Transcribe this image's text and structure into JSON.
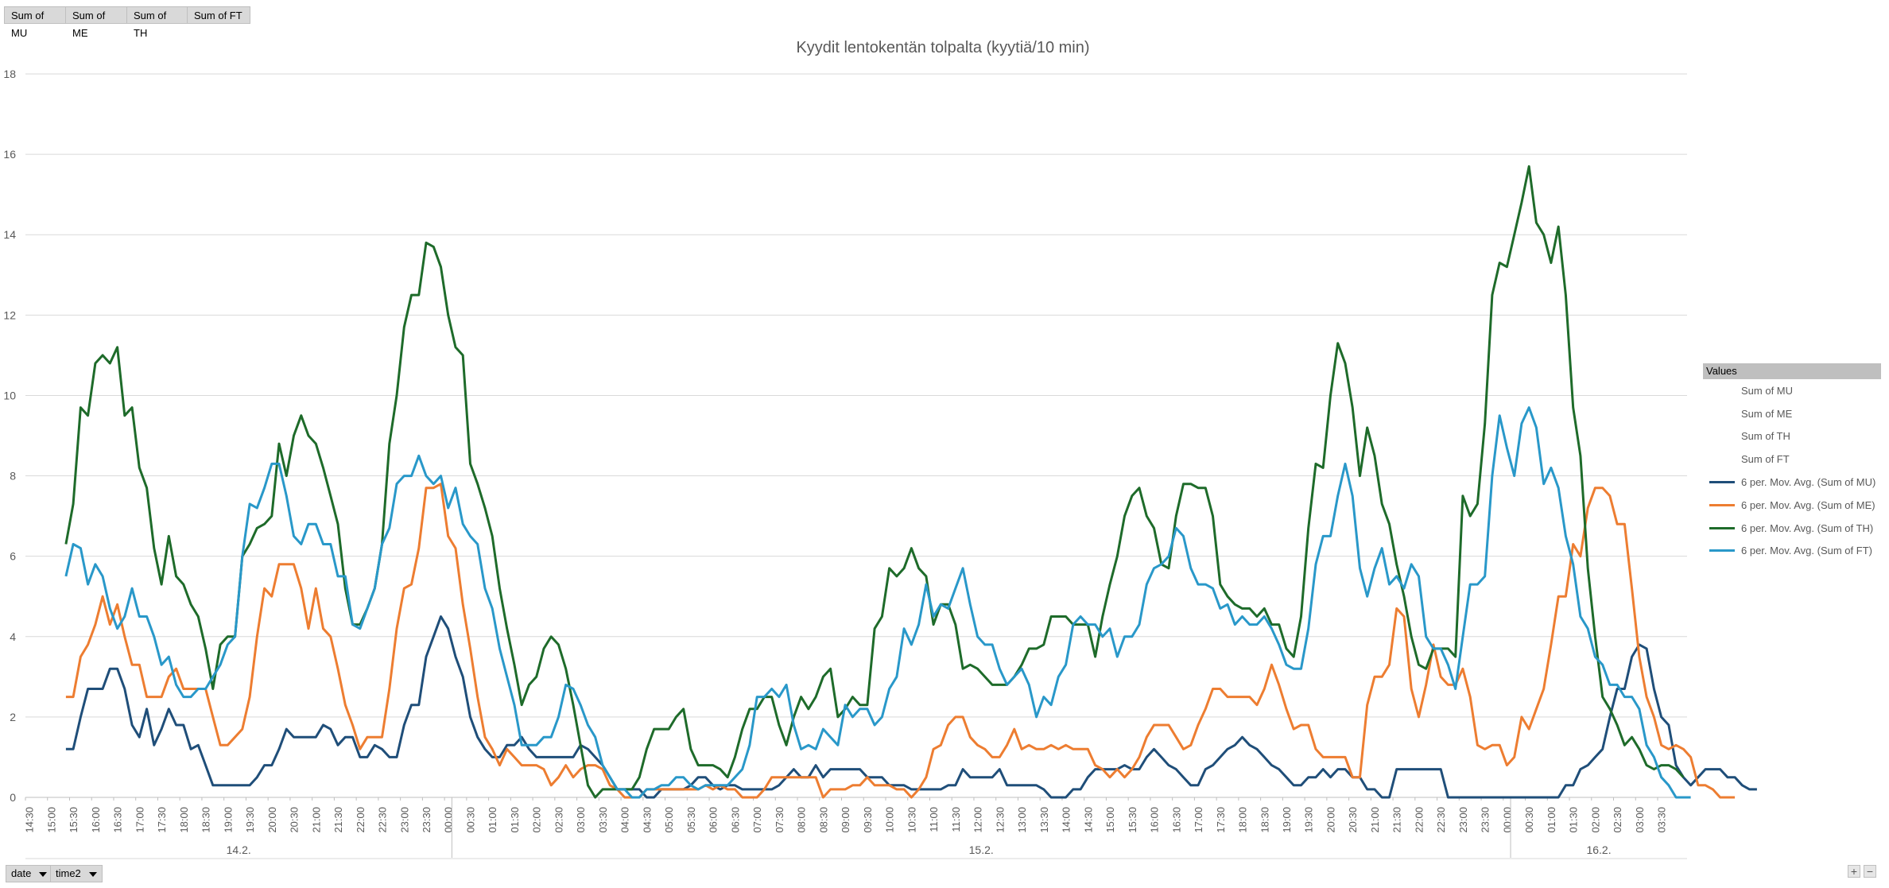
{
  "toolbar": {
    "fields": [
      "Sum of MU",
      "Sum of ME",
      "Sum of TH",
      "Sum of FT"
    ],
    "row_fields": [
      "date",
      "time2"
    ],
    "zoom_in": "+",
    "zoom_out": "−"
  },
  "chart_data": {
    "type": "line",
    "title": "Kyydit lentokentän tolpalta (kyytiä/10 min)",
    "xlabel": "",
    "ylabel": "",
    "ylim": [
      0,
      18
    ],
    "yticks": [
      0,
      2,
      4,
      6,
      8,
      10,
      12,
      14,
      16,
      18
    ],
    "grid": true,
    "legend_position": "right",
    "legend_title": "Values",
    "x_start": "14.2. 14:30",
    "interval_minutes": 10,
    "tick_labels": [
      "14:30",
      "15:00",
      "15:30",
      "16:00",
      "16:30",
      "17:00",
      "17:30",
      "18:00",
      "18:30",
      "19:00",
      "19:30",
      "20:00",
      "20:30",
      "21:00",
      "21:30",
      "22:00",
      "22:30",
      "23:00",
      "23:30",
      "00:00",
      "00:30",
      "01:00",
      "01:30",
      "02:00",
      "02:30",
      "03:00",
      "03:30",
      "04:00",
      "04:30",
      "05:00",
      "05:30",
      "06:00",
      "06:30",
      "07:00",
      "07:30",
      "08:00",
      "08:30",
      "09:00",
      "09:30",
      "10:00",
      "10:30",
      "11:00",
      "11:30",
      "12:00",
      "12:30",
      "13:00",
      "13:30",
      "14:00",
      "14:30",
      "15:00",
      "15:30",
      "16:00",
      "16:30",
      "17:00",
      "17:30",
      "18:00",
      "18:30",
      "19:00",
      "19:30",
      "20:00",
      "20:30",
      "21:00",
      "21:30",
      "22:00",
      "22:30",
      "23:00",
      "23:30",
      "00:00",
      "00:30",
      "01:00",
      "01:30",
      "02:00",
      "02:30",
      "03:00",
      "03:30"
    ],
    "date_groups": [
      {
        "label": "14.2.",
        "start_index": 0,
        "end_index": 58
      },
      {
        "label": "15.2.",
        "start_index": 58,
        "end_index": 202
      },
      {
        "label": "16.2.",
        "start_index": 202,
        "end_index": 226
      }
    ],
    "series": [
      {
        "name": "Sum of MU",
        "color": "#ffffff",
        "values": []
      },
      {
        "name": "Sum of ME",
        "color": "#ffffff",
        "values": []
      },
      {
        "name": "Sum of TH",
        "color": "#ffffff",
        "values": []
      },
      {
        "name": "Sum of FT",
        "color": "#ffffff",
        "values": []
      },
      {
        "name": "6 per. Mov. Avg. (Sum of MU)",
        "color": "#1f4e79",
        "values": [
          null,
          null,
          null,
          null,
          null,
          1.2,
          1.2,
          2.0,
          2.7,
          2.7,
          2.7,
          3.2,
          3.2,
          2.7,
          1.8,
          1.5,
          2.2,
          1.3,
          1.7,
          2.2,
          1.8,
          1.8,
          1.2,
          1.3,
          0.8,
          0.3,
          0.3,
          0.3,
          0.3,
          0.3,
          0.3,
          0.5,
          0.8,
          0.8,
          1.2,
          1.7,
          1.5,
          1.5,
          1.5,
          1.5,
          1.8,
          1.7,
          1.3,
          1.5,
          1.5,
          1.0,
          1.0,
          1.3,
          1.2,
          1.0,
          1.0,
          1.8,
          2.3,
          2.3,
          3.5,
          4.0,
          4.5,
          4.2,
          3.5,
          3.0,
          2.0,
          1.5,
          1.2,
          1.0,
          1.0,
          1.3,
          1.3,
          1.5,
          1.2,
          1.0,
          1.0,
          1.0,
          1.0,
          1.0,
          1.0,
          1.3,
          1.2,
          1.0,
          0.8,
          0.5,
          0.2,
          0.2,
          0.2,
          0.2,
          0.0,
          0.0,
          0.2,
          0.2,
          0.2,
          0.2,
          0.3,
          0.5,
          0.5,
          0.3,
          0.2,
          0.3,
          0.3,
          0.2,
          0.2,
          0.2,
          0.2,
          0.2,
          0.3,
          0.5,
          0.7,
          0.5,
          0.5,
          0.8,
          0.5,
          0.7,
          0.7,
          0.7,
          0.7,
          0.7,
          0.5,
          0.5,
          0.5,
          0.3,
          0.3,
          0.3,
          0.2,
          0.2,
          0.2,
          0.2,
          0.2,
          0.3,
          0.3,
          0.7,
          0.5,
          0.5,
          0.5,
          0.5,
          0.7,
          0.3,
          0.3,
          0.3,
          0.3,
          0.3,
          0.2,
          0.0,
          0.0,
          0.0,
          0.2,
          0.2,
          0.5,
          0.7,
          0.7,
          0.7,
          0.7,
          0.8,
          0.7,
          0.7,
          1.0,
          1.2,
          1.0,
          0.8,
          0.7,
          0.5,
          0.3,
          0.3,
          0.7,
          0.8,
          1.0,
          1.2,
          1.3,
          1.5,
          1.3,
          1.2,
          1.0,
          0.8,
          0.7,
          0.5,
          0.3,
          0.3,
          0.5,
          0.5,
          0.7,
          0.5,
          0.7,
          0.7,
          0.5,
          0.5,
          0.2,
          0.2,
          0.0,
          0.0,
          0.7,
          0.7,
          0.7,
          0.7,
          0.7,
          0.7,
          0.7,
          0.0,
          0.0,
          0.0,
          0.0,
          0.0,
          0.0,
          0.0,
          0.0,
          0.0,
          0.0,
          0.0,
          0.0,
          0.0,
          0.0,
          0.0,
          0.0,
          0.3,
          0.3,
          0.7,
          0.8,
          1.0,
          1.2,
          2.0,
          2.7,
          2.7,
          3.5,
          3.8,
          3.7,
          2.7,
          2.0,
          1.8,
          0.8,
          0.5,
          0.3,
          0.5,
          0.7,
          0.7,
          0.7,
          0.5,
          0.5,
          0.3,
          0.2,
          0.2
        ]
      },
      {
        "name": "6 per. Mov. Avg. (Sum of ME)",
        "color": "#ed7d31",
        "values": [
          null,
          null,
          null,
          null,
          null,
          2.5,
          2.5,
          3.5,
          3.8,
          4.3,
          5.0,
          4.3,
          4.8,
          4.0,
          3.3,
          3.3,
          2.5,
          2.5,
          2.5,
          3.0,
          3.2,
          2.7,
          2.7,
          2.7,
          2.7,
          2.0,
          1.3,
          1.3,
          1.5,
          1.7,
          2.5,
          4.0,
          5.2,
          5.0,
          5.8,
          5.8,
          5.8,
          5.2,
          4.2,
          5.2,
          4.2,
          4.0,
          3.2,
          2.3,
          1.8,
          1.2,
          1.5,
          1.5,
          1.5,
          2.7,
          4.2,
          5.2,
          5.3,
          6.2,
          7.7,
          7.7,
          7.8,
          6.5,
          6.2,
          4.8,
          3.7,
          2.5,
          1.5,
          1.2,
          0.8,
          1.2,
          1.0,
          0.8,
          0.8,
          0.8,
          0.7,
          0.3,
          0.5,
          0.8,
          0.5,
          0.7,
          0.8,
          0.8,
          0.7,
          0.3,
          0.2,
          0.0,
          0.0,
          0.0,
          0.2,
          0.2,
          0.2,
          0.2,
          0.2,
          0.2,
          0.2,
          0.2,
          0.3,
          0.2,
          0.3,
          0.2,
          0.2,
          0.0,
          0.0,
          0.0,
          0.2,
          0.5,
          0.5,
          0.5,
          0.5,
          0.5,
          0.5,
          0.5,
          0.0,
          0.2,
          0.2,
          0.2,
          0.3,
          0.3,
          0.5,
          0.3,
          0.3,
          0.3,
          0.2,
          0.2,
          0.0,
          0.2,
          0.5,
          1.2,
          1.3,
          1.8,
          2.0,
          2.0,
          1.5,
          1.3,
          1.2,
          1.0,
          1.0,
          1.3,
          1.7,
          1.2,
          1.3,
          1.2,
          1.2,
          1.3,
          1.2,
          1.3,
          1.2,
          1.2,
          1.2,
          0.8,
          0.7,
          0.5,
          0.7,
          0.5,
          0.7,
          1.0,
          1.5,
          1.8,
          1.8,
          1.8,
          1.5,
          1.2,
          1.3,
          1.8,
          2.2,
          2.7,
          2.7,
          2.5,
          2.5,
          2.5,
          2.5,
          2.3,
          2.7,
          3.3,
          2.8,
          2.2,
          1.7,
          1.8,
          1.8,
          1.2,
          1.0,
          1.0,
          1.0,
          1.0,
          0.5,
          0.5,
          2.3,
          3.0,
          3.0,
          3.3,
          4.7,
          4.5,
          2.7,
          2.0,
          2.8,
          3.8,
          3.0,
          2.8,
          2.8,
          3.2,
          2.5,
          1.3,
          1.2,
          1.3,
          1.3,
          0.8,
          1.0,
          2.0,
          1.7,
          2.2,
          2.7,
          3.8,
          5.0,
          5.0,
          6.3,
          6.0,
          7.2,
          7.7,
          7.7,
          7.5,
          6.8,
          6.8,
          5.2,
          3.5,
          2.5,
          2.0,
          1.3,
          1.2,
          1.3,
          1.2,
          1.0,
          0.3,
          0.3,
          0.2,
          0.0,
          0.0,
          0.0
        ]
      },
      {
        "name": "6 per. Mov. Avg. (Sum of TH)",
        "color": "#1e6b2a",
        "values": [
          null,
          null,
          null,
          null,
          null,
          6.3,
          7.3,
          9.7,
          9.5,
          10.8,
          11.0,
          10.8,
          11.2,
          9.5,
          9.7,
          8.2,
          7.7,
          6.2,
          5.3,
          6.5,
          5.5,
          5.3,
          4.8,
          4.5,
          3.7,
          2.7,
          3.8,
          4.0,
          4.0,
          6.0,
          6.3,
          6.7,
          6.8,
          7.0,
          8.8,
          8.0,
          9.0,
          9.5,
          9.0,
          8.8,
          8.2,
          7.5,
          6.8,
          5.2,
          4.3,
          4.3,
          4.7,
          5.2,
          6.3,
          8.8,
          10.0,
          11.7,
          12.5,
          12.5,
          13.8,
          13.7,
          13.2,
          12.0,
          11.2,
          11.0,
          8.3,
          7.8,
          7.2,
          6.5,
          5.2,
          4.2,
          3.3,
          2.3,
          2.8,
          3.0,
          3.7,
          4.0,
          3.8,
          3.2,
          2.3,
          1.3,
          0.3,
          0.0,
          0.2,
          0.2,
          0.2,
          0.2,
          0.2,
          0.5,
          1.2,
          1.7,
          1.7,
          1.7,
          2.0,
          2.2,
          1.2,
          0.8,
          0.8,
          0.8,
          0.7,
          0.5,
          1.0,
          1.7,
          2.2,
          2.2,
          2.5,
          2.5,
          1.8,
          1.3,
          2.0,
          2.5,
          2.2,
          2.5,
          3.0,
          3.2,
          2.0,
          2.2,
          2.5,
          2.3,
          2.3,
          4.2,
          4.5,
          5.7,
          5.5,
          5.7,
          6.2,
          5.7,
          5.5,
          4.3,
          4.8,
          4.8,
          4.3,
          3.2,
          3.3,
          3.2,
          3.0,
          2.8,
          2.8,
          2.8,
          3.0,
          3.3,
          3.7,
          3.7,
          3.8,
          4.5,
          4.5,
          4.5,
          4.3,
          4.3,
          4.3,
          3.5,
          4.5,
          5.3,
          6.0,
          7.0,
          7.5,
          7.7,
          7.0,
          6.7,
          5.8,
          5.7,
          7.0,
          7.8,
          7.8,
          7.7,
          7.7,
          7.0,
          5.3,
          5.0,
          4.8,
          4.7,
          4.7,
          4.5,
          4.7,
          4.3,
          4.3,
          3.7,
          3.5,
          4.5,
          6.7,
          8.3,
          8.2,
          10.0,
          11.3,
          10.8,
          9.7,
          8.0,
          9.2,
          8.5,
          7.3,
          6.8,
          5.8,
          5.0,
          4.0,
          3.3,
          3.2,
          3.7,
          3.7,
          3.7,
          3.5,
          7.5,
          7.0,
          7.3,
          9.3,
          12.5,
          13.3,
          13.2,
          14.0,
          14.8,
          15.7,
          14.3,
          14.0,
          13.3,
          14.2,
          12.5,
          9.7,
          8.5,
          5.7,
          4.0,
          2.5,
          2.2,
          1.8,
          1.3,
          1.5,
          1.2,
          0.8,
          0.7,
          0.8,
          0.8,
          0.7,
          0.5
        ]
      },
      {
        "name": "6 per. Mov. Avg. (Sum of FT)",
        "color": "#2998c9",
        "values": [
          null,
          null,
          null,
          null,
          null,
          5.5,
          6.3,
          6.2,
          5.3,
          5.8,
          5.5,
          4.7,
          4.2,
          4.5,
          5.2,
          4.5,
          4.5,
          4.0,
          3.3,
          3.5,
          2.8,
          2.5,
          2.5,
          2.7,
          2.7,
          3.0,
          3.3,
          3.8,
          4.0,
          6.0,
          7.3,
          7.2,
          7.7,
          8.3,
          8.3,
          7.5,
          6.5,
          6.3,
          6.8,
          6.8,
          6.3,
          6.3,
          5.5,
          5.5,
          4.3,
          4.2,
          4.7,
          5.2,
          6.3,
          6.7,
          7.8,
          8.0,
          8.0,
          8.5,
          8.0,
          7.8,
          8.0,
          7.2,
          7.7,
          6.8,
          6.5,
          6.3,
          5.2,
          4.7,
          3.7,
          3.0,
          2.3,
          1.3,
          1.3,
          1.3,
          1.5,
          1.5,
          2.0,
          2.8,
          2.7,
          2.3,
          1.8,
          1.5,
          0.8,
          0.5,
          0.2,
          0.2,
          0.0,
          0.0,
          0.2,
          0.2,
          0.3,
          0.3,
          0.5,
          0.5,
          0.3,
          0.2,
          0.3,
          0.3,
          0.3,
          0.3,
          0.5,
          0.7,
          1.3,
          2.5,
          2.5,
          2.7,
          2.5,
          2.8,
          1.8,
          1.2,
          1.3,
          1.2,
          1.7,
          1.5,
          1.3,
          2.3,
          2.0,
          2.2,
          2.2,
          1.8,
          2.0,
          2.7,
          3.0,
          4.2,
          3.8,
          4.3,
          5.3,
          4.5,
          4.8,
          4.7,
          5.2,
          5.7,
          4.8,
          4.0,
          3.8,
          3.8,
          3.2,
          2.8,
          3.0,
          3.2,
          2.8,
          2.0,
          2.5,
          2.3,
          3.0,
          3.3,
          4.3,
          4.5,
          4.3,
          4.3,
          4.0,
          4.2,
          3.5,
          4.0,
          4.0,
          4.3,
          5.3,
          5.7,
          5.8,
          6.0,
          6.7,
          6.5,
          5.7,
          5.3,
          5.3,
          5.2,
          4.7,
          4.8,
          4.3,
          4.5,
          4.3,
          4.3,
          4.5,
          4.2,
          3.8,
          3.3,
          3.2,
          3.2,
          4.2,
          5.8,
          6.5,
          6.5,
          7.5,
          8.3,
          7.5,
          5.7,
          5.0,
          5.7,
          6.2,
          5.3,
          5.5,
          5.2,
          5.8,
          5.5,
          4.0,
          3.7,
          3.7,
          3.3,
          2.7,
          4.0,
          5.3,
          5.3,
          5.5,
          8.0,
          9.5,
          8.7,
          8.0,
          9.3,
          9.7,
          9.2,
          7.8,
          8.2,
          7.7,
          6.5,
          5.8,
          4.5,
          4.2,
          3.5,
          3.3,
          2.8,
          2.8,
          2.5,
          2.5,
          2.2,
          1.3,
          1.0,
          0.5,
          0.3,
          0.0,
          0.0,
          0.0
        ]
      }
    ]
  }
}
